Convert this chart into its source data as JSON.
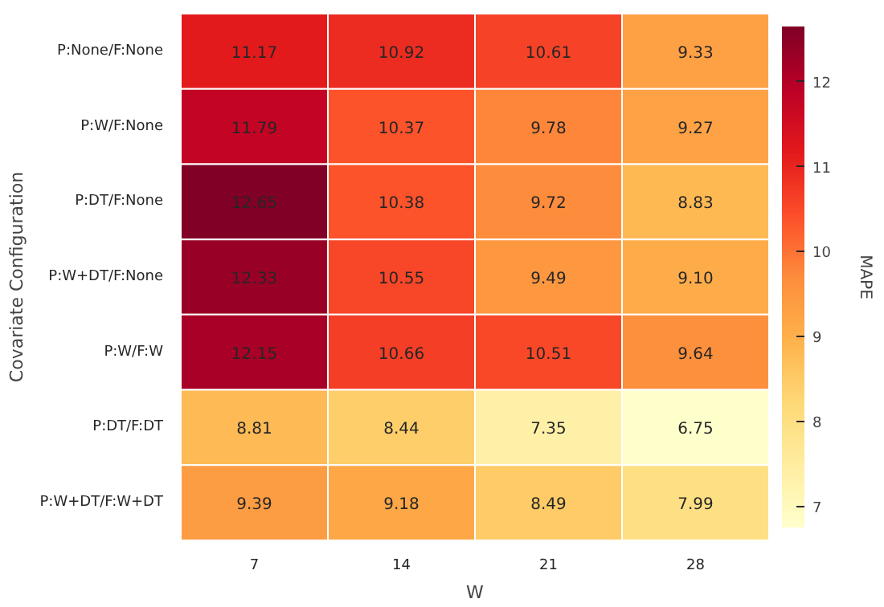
{
  "chart_data": {
    "type": "heatmap",
    "xlabel": "W",
    "ylabel": "Covariate Configuration",
    "clabel": "MAPE",
    "categories": [
      "7",
      "14",
      "21",
      "28"
    ],
    "y_categories": [
      "P:None/F:None",
      "P:W/F:None",
      "P:DT/F:None",
      "P:W+DT/F:None",
      "P:W/F:W",
      "P:DT/F:DT",
      "P:W+DT/F:W+DT"
    ],
    "cells": [
      [
        11.17,
        10.92,
        10.61,
        9.33
      ],
      [
        11.79,
        10.37,
        9.78,
        9.27
      ],
      [
        12.65,
        10.38,
        9.72,
        8.83
      ],
      [
        12.33,
        10.55,
        9.49,
        9.1
      ],
      [
        12.15,
        10.66,
        10.51,
        9.64
      ],
      [
        8.81,
        8.44,
        7.35,
        6.75
      ],
      [
        9.39,
        9.18,
        8.49,
        7.99
      ]
    ],
    "cell_labels": [
      [
        "11.17",
        "10.92",
        "10.61",
        "9.33"
      ],
      [
        "11.79",
        "10.37",
        "9.78",
        "9.27"
      ],
      [
        "12.65",
        "10.38",
        "9.72",
        "8.83"
      ],
      [
        "12.33",
        "10.55",
        "9.49",
        "9.10"
      ],
      [
        "12.15",
        "10.66",
        "10.51",
        "9.64"
      ],
      [
        "8.81",
        "8.44",
        "7.35",
        "6.75"
      ],
      [
        "9.39",
        "9.18",
        "8.49",
        "7.99"
      ]
    ],
    "clim": [
      6.75,
      12.65
    ],
    "cticks": [
      7,
      8,
      9,
      10,
      11,
      12
    ]
  }
}
